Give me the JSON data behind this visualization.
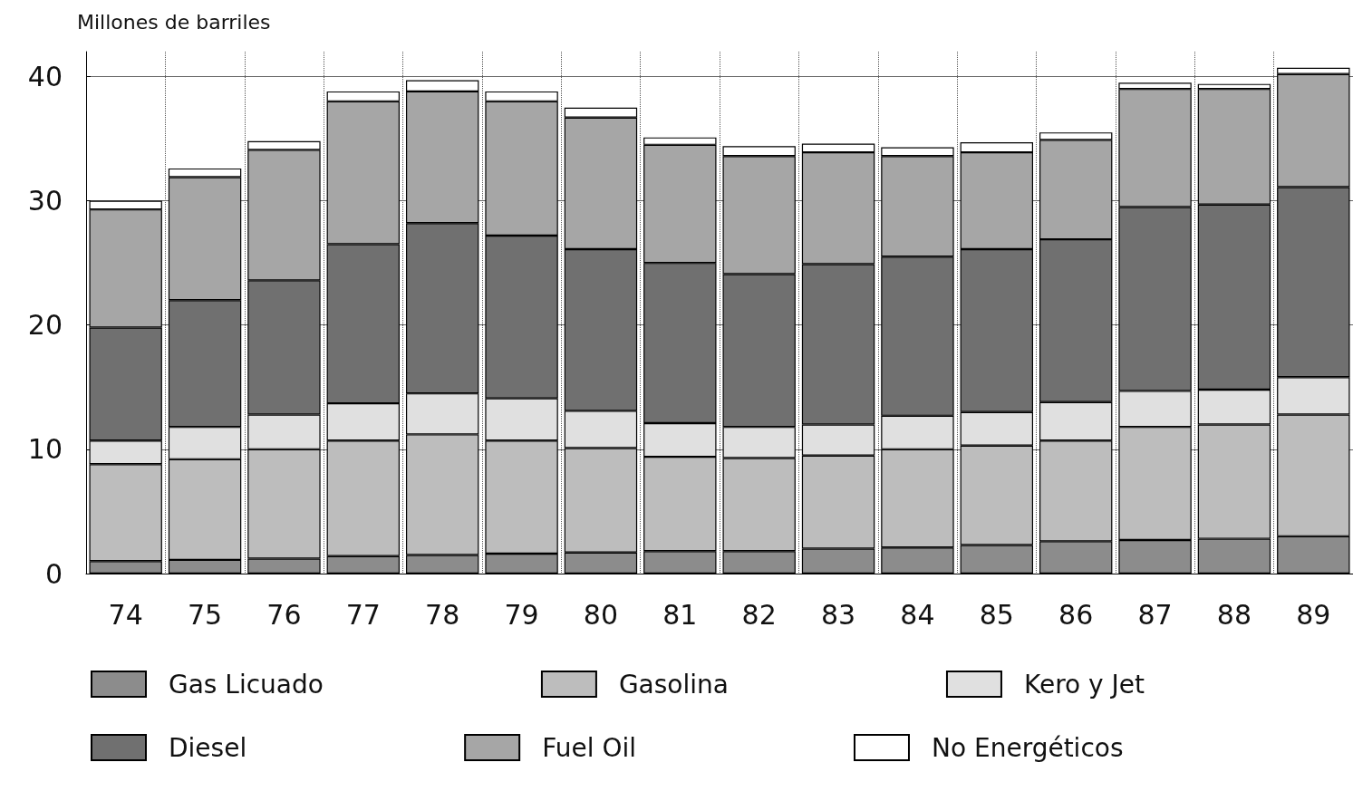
{
  "chart_data": {
    "type": "bar",
    "stacked": true,
    "ylabel": "Millones de barriles",
    "categories": [
      "74",
      "75",
      "76",
      "77",
      "78",
      "79",
      "80",
      "81",
      "82",
      "83",
      "84",
      "85",
      "86",
      "87",
      "88",
      "89"
    ],
    "series": [
      {
        "name": "Gas Licuado",
        "color": "#8c8c8c",
        "values": [
          1.0,
          1.1,
          1.2,
          1.4,
          1.5,
          1.6,
          1.7,
          1.8,
          1.8,
          2.0,
          2.1,
          2.3,
          2.6,
          2.7,
          2.8,
          3.0
        ]
      },
      {
        "name": "Gasolina",
        "color": "#bdbdbd",
        "values": [
          7.8,
          8.1,
          8.8,
          9.3,
          9.7,
          9.1,
          8.4,
          7.6,
          7.5,
          7.5,
          7.9,
          8.0,
          8.1,
          9.1,
          9.2,
          9.8
        ]
      },
      {
        "name": "Kero y Jet",
        "color": "#e0e0e0",
        "values": [
          1.9,
          2.6,
          2.8,
          3.0,
          3.3,
          3.4,
          3.0,
          2.7,
          2.5,
          2.5,
          2.7,
          2.7,
          3.1,
          2.9,
          2.8,
          3.0
        ]
      },
      {
        "name": "Diesel",
        "color": "#707070",
        "values": [
          9.1,
          10.2,
          10.8,
          12.8,
          13.7,
          13.1,
          13.0,
          12.9,
          12.3,
          12.9,
          12.8,
          13.1,
          13.1,
          14.8,
          14.9,
          15.3
        ]
      },
      {
        "name": "Fuel Oil",
        "color": "#a6a6a6",
        "values": [
          9.5,
          9.9,
          10.5,
          11.5,
          10.6,
          10.8,
          10.6,
          9.5,
          9.5,
          9.0,
          8.1,
          7.8,
          8.0,
          9.5,
          9.3,
          9.1
        ]
      },
      {
        "name": "No Energéticos",
        "color": "#ffffff",
        "values": [
          0.7,
          0.7,
          0.7,
          0.8,
          0.9,
          0.8,
          0.8,
          0.6,
          0.8,
          0.7,
          0.7,
          0.8,
          0.6,
          0.5,
          0.4,
          0.5
        ]
      }
    ],
    "ylim": [
      0,
      42
    ],
    "yticks": [
      0,
      10,
      20,
      30,
      40
    ],
    "grid": true,
    "legend": "bottom"
  }
}
